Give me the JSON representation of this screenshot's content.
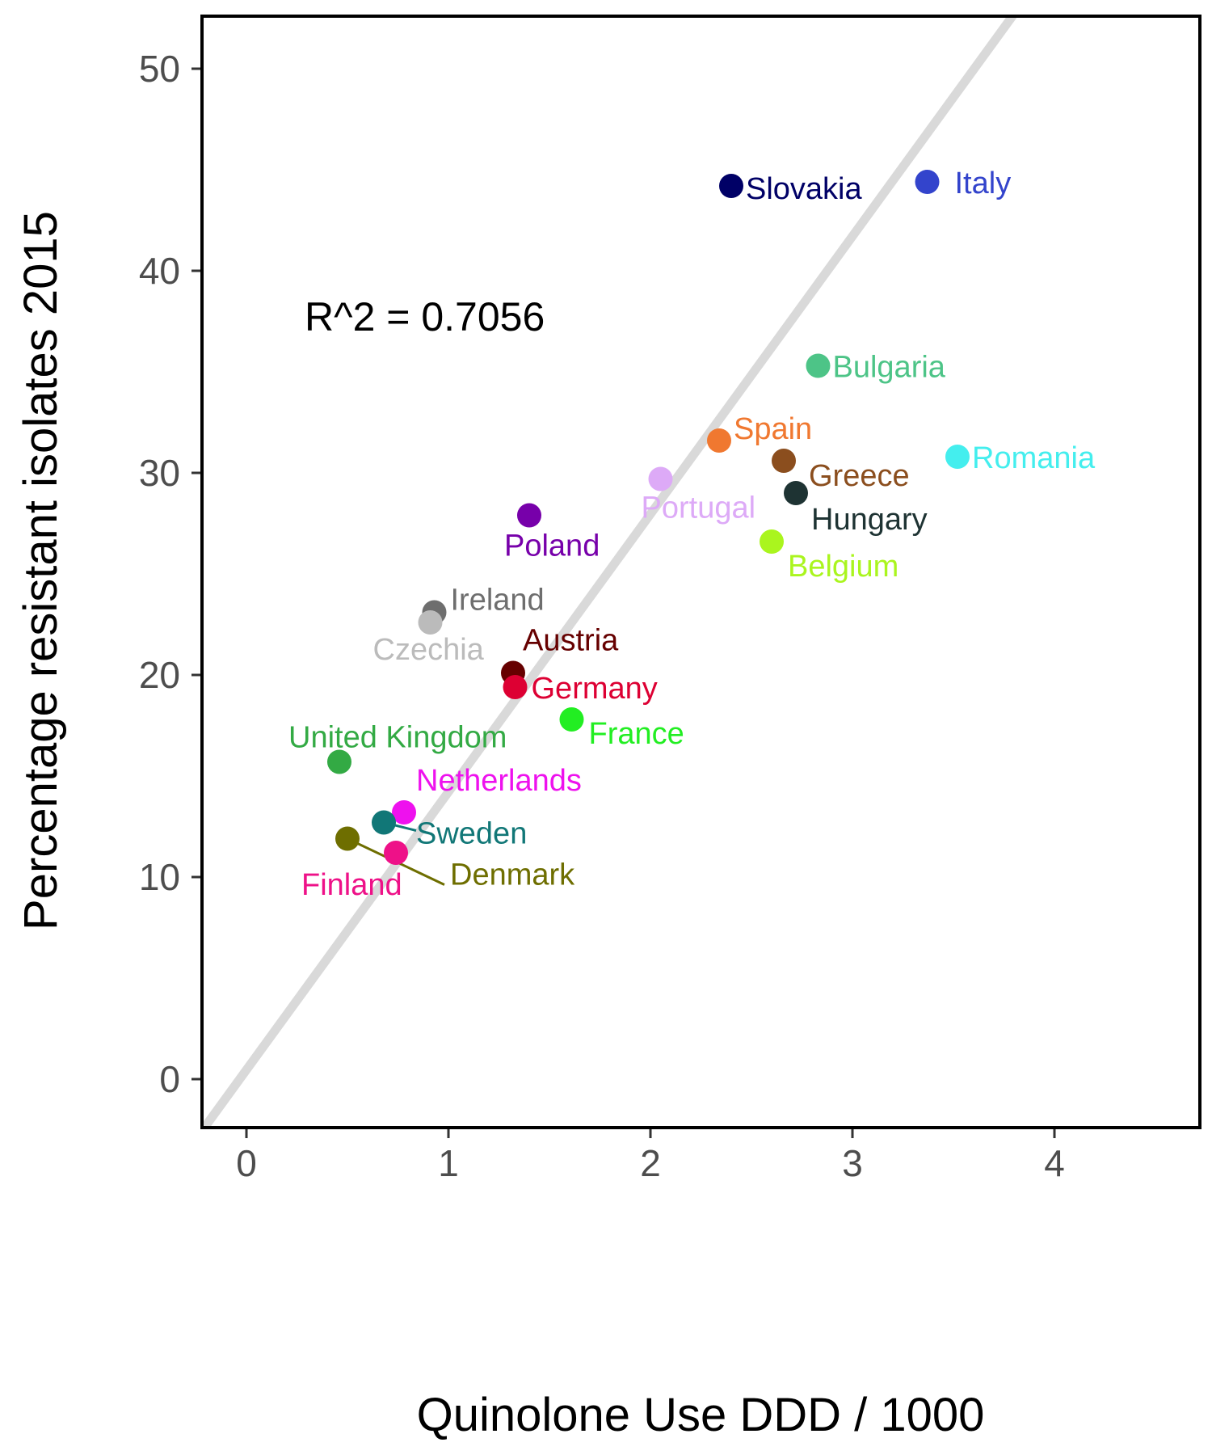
{
  "chart_data": {
    "type": "scatter",
    "xlabel": "Quinolone Use DDD / 1000",
    "ylabel": "Percentage resistant isolates 2015",
    "xlim": [
      -0.22,
      4.72
    ],
    "ylim": [
      -2.4,
      52.6
    ],
    "xticks": [
      "0",
      "1",
      "2",
      "3",
      "4"
    ],
    "yticks": [
      "0",
      "10",
      "20",
      "30",
      "40",
      "50"
    ],
    "grid": false,
    "annotation": "R^2 = 0.7056",
    "fit_line": {
      "slope": 13.75,
      "intercept": 0.46,
      "color": "#d9d9d9"
    },
    "points": [
      {
        "label": "Slovakia",
        "x": 2.4,
        "y": 44.2,
        "color": "#000066"
      },
      {
        "label": "Italy",
        "x": 3.37,
        "y": 44.4,
        "color": "#3344cc"
      },
      {
        "label": "Bulgaria",
        "x": 2.83,
        "y": 35.3,
        "color": "#4dc487"
      },
      {
        "label": "Spain",
        "x": 2.34,
        "y": 31.6,
        "color": "#f07830"
      },
      {
        "label": "Romania",
        "x": 3.52,
        "y": 30.8,
        "color": "#44eeee"
      },
      {
        "label": "Greece",
        "x": 2.66,
        "y": 30.6,
        "color": "#8b4e1e"
      },
      {
        "label": "Portugal",
        "x": 2.05,
        "y": 29.7,
        "color": "#ddaaf7"
      },
      {
        "label": "Hungary",
        "x": 2.72,
        "y": 29.0,
        "color": "#1e3333"
      },
      {
        "label": "Poland",
        "x": 1.4,
        "y": 27.9,
        "color": "#7700aa"
      },
      {
        "label": "Belgium",
        "x": 2.6,
        "y": 26.6,
        "color": "#aaf51e"
      },
      {
        "label": "Ireland",
        "x": 0.93,
        "y": 23.1,
        "color": "#6e6e6e"
      },
      {
        "label": "Czechia",
        "x": 0.91,
        "y": 22.6,
        "color": "#bbbbbb"
      },
      {
        "label": "Austria",
        "x": 1.32,
        "y": 20.1,
        "color": "#660000"
      },
      {
        "label": "Germany",
        "x": 1.33,
        "y": 19.4,
        "color": "#dd0033"
      },
      {
        "label": "France",
        "x": 1.61,
        "y": 17.8,
        "color": "#22ee22"
      },
      {
        "label": "United Kingdom",
        "x": 0.46,
        "y": 15.7,
        "color": "#33aa44"
      },
      {
        "label": "Netherlands",
        "x": 0.78,
        "y": 13.2,
        "color": "#ee11ee"
      },
      {
        "label": "Sweden",
        "x": 0.68,
        "y": 12.7,
        "color": "#117777"
      },
      {
        "label": "Denmark",
        "x": 0.5,
        "y": 11.9,
        "color": "#6e6e00"
      },
      {
        "label": "Finland",
        "x": 0.74,
        "y": 11.2,
        "color": "#ee1188"
      }
    ]
  }
}
